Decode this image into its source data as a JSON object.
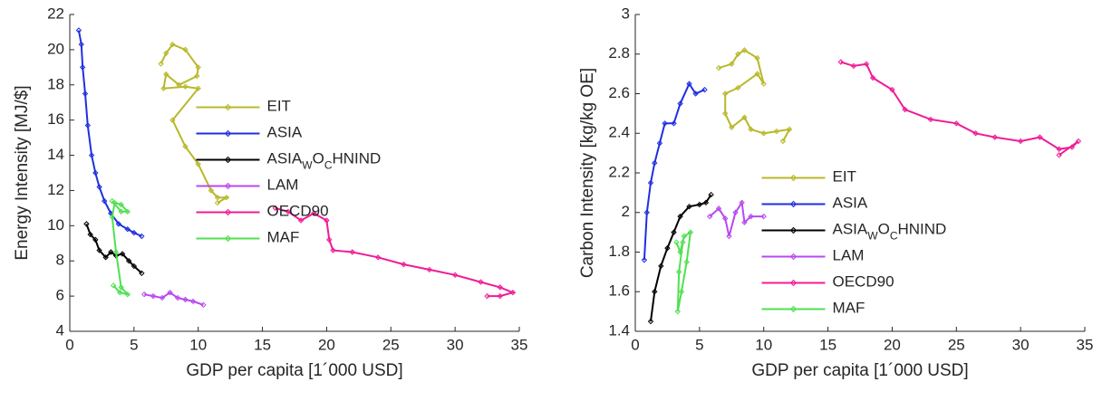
{
  "chart_data": [
    {
      "type": "line",
      "xlabel": "GDP per capita [1´000 USD]",
      "ylabel": "Energy Intensity [MJ/$]",
      "xlim": [
        0,
        35
      ],
      "xticks": [
        0,
        5,
        10,
        15,
        20,
        25,
        30,
        35
      ],
      "ylim": [
        4,
        22
      ],
      "yticks": [
        4,
        6,
        8,
        10,
        12,
        14,
        16,
        18,
        20,
        22
      ],
      "legend_location": "center",
      "series": [
        {
          "name": "EIT",
          "color": "#b8b82a",
          "x": [
            7.1,
            7.5,
            8.0,
            9.0,
            10.0,
            9.9,
            8.5,
            7.5,
            7.3,
            9.0,
            10.0,
            8.0,
            9.0,
            10.0,
            11.0,
            11.5,
            12.2,
            11.5
          ],
          "values": [
            19.2,
            19.8,
            20.3,
            20.0,
            19.0,
            18.5,
            18.0,
            18.6,
            17.8,
            17.9,
            17.8,
            16.0,
            14.5,
            13.5,
            12.0,
            11.6,
            11.6,
            11.3
          ]
        },
        {
          "name": "ASIA",
          "color": "#1f2fe0",
          "x": [
            0.7,
            0.9,
            1.0,
            1.2,
            1.4,
            1.7,
            2.0,
            2.3,
            2.7,
            3.2,
            3.8,
            4.5,
            5.0,
            5.6
          ],
          "values": [
            21.1,
            20.3,
            19.0,
            17.5,
            15.7,
            14.0,
            13.0,
            12.2,
            11.4,
            10.7,
            10.1,
            9.8,
            9.6,
            9.4
          ]
        },
        {
          "name": "ASIA_WO_CHNIND",
          "color": "#000000",
          "x": [
            1.3,
            1.6,
            2.0,
            2.3,
            2.8,
            3.2,
            3.6,
            4.1,
            4.6,
            5.0,
            5.6
          ],
          "values": [
            10.1,
            9.5,
            9.2,
            8.6,
            8.2,
            8.5,
            8.3,
            8.4,
            8.0,
            7.7,
            7.3
          ]
        },
        {
          "name": "LAM",
          "color": "#b848f0",
          "x": [
            5.8,
            6.5,
            7.2,
            7.8,
            8.4,
            9.0,
            9.6,
            10.4
          ],
          "values": [
            6.1,
            6.0,
            5.9,
            6.2,
            5.9,
            5.8,
            5.7,
            5.5
          ]
        },
        {
          "name": "OECD90",
          "color": "#f01c96",
          "x": [
            16,
            17,
            18,
            19,
            20,
            20.2,
            20.5,
            22,
            24,
            26,
            28,
            30,
            32,
            33.5,
            34.5,
            33.5,
            32.5
          ],
          "values": [
            11.0,
            10.8,
            10.3,
            10.7,
            10.3,
            9.2,
            8.6,
            8.5,
            8.2,
            7.8,
            7.5,
            7.2,
            6.8,
            6.5,
            6.2,
            6.0,
            6.0
          ]
        },
        {
          "name": "MAF",
          "color": "#50e050",
          "x": [
            3.4,
            3.9,
            4.5,
            4.0,
            3.6,
            3.3,
            3.5,
            4.0,
            4.5,
            4.0,
            3.3
          ],
          "values": [
            6.6,
            6.2,
            6.1,
            6.5,
            8.5,
            10.5,
            11.3,
            11.2,
            10.8,
            10.8,
            11.4
          ]
        }
      ]
    },
    {
      "type": "line",
      "xlabel": "GDP per capita [1´000 USD]",
      "ylabel": "Carbon Intensity [kg/kg OE]",
      "xlim": [
        0,
        35
      ],
      "xticks": [
        0,
        5,
        10,
        15,
        20,
        25,
        30,
        35
      ],
      "ylim": [
        1.4,
        3
      ],
      "yticks": [
        1.4,
        1.6,
        1.8,
        2,
        2.2,
        2.4,
        2.6,
        2.8,
        3
      ],
      "legend_location": "south",
      "series": [
        {
          "name": "EIT",
          "color": "#b8b82a",
          "x": [
            6.5,
            7.5,
            8.0,
            8.5,
            9.5,
            10.0,
            9.5,
            8.0,
            7.0,
            7.0,
            7.5,
            8.5,
            9.0,
            10.0,
            11.0,
            12.0,
            11.5
          ],
          "values": [
            2.73,
            2.75,
            2.8,
            2.82,
            2.78,
            2.65,
            2.7,
            2.63,
            2.6,
            2.5,
            2.43,
            2.48,
            2.42,
            2.4,
            2.41,
            2.42,
            2.36
          ]
        },
        {
          "name": "ASIA",
          "color": "#1f2fe0",
          "x": [
            0.7,
            0.9,
            1.2,
            1.5,
            1.9,
            2.3,
            3.0,
            3.5,
            4.2,
            4.7,
            5.4
          ],
          "values": [
            1.76,
            2.0,
            2.15,
            2.25,
            2.35,
            2.45,
            2.45,
            2.55,
            2.65,
            2.6,
            2.62
          ]
        },
        {
          "name": "ASIA_WO_CHNIND",
          "color": "#000000",
          "x": [
            1.2,
            1.5,
            2.0,
            2.5,
            3.0,
            3.5,
            4.2,
            5.0,
            5.5,
            5.9
          ],
          "values": [
            1.45,
            1.6,
            1.73,
            1.82,
            1.9,
            1.98,
            2.03,
            2.04,
            2.05,
            2.09
          ]
        },
        {
          "name": "LAM",
          "color": "#b848f0",
          "x": [
            5.8,
            6.5,
            7.0,
            7.3,
            7.8,
            8.3,
            8.5,
            9.0,
            10.0
          ],
          "values": [
            1.98,
            2.02,
            1.97,
            1.88,
            2.0,
            2.05,
            1.95,
            1.98,
            1.98
          ]
        },
        {
          "name": "OECD90",
          "color": "#f01c96",
          "x": [
            16,
            17,
            18,
            18.5,
            20,
            21,
            23,
            25,
            26.5,
            28,
            30,
            31.5,
            33,
            34,
            34.5,
            33
          ],
          "values": [
            2.76,
            2.74,
            2.75,
            2.68,
            2.62,
            2.52,
            2.47,
            2.45,
            2.4,
            2.38,
            2.36,
            2.38,
            2.32,
            2.33,
            2.36,
            2.29
          ]
        },
        {
          "name": "MAF",
          "color": "#50e050",
          "x": [
            3.2,
            3.5,
            3.8,
            4.3,
            4.0,
            3.6,
            3.3,
            3.4,
            3.7
          ],
          "values": [
            1.85,
            1.8,
            1.88,
            1.9,
            1.75,
            1.6,
            1.5,
            1.7,
            1.85
          ]
        }
      ]
    }
  ]
}
